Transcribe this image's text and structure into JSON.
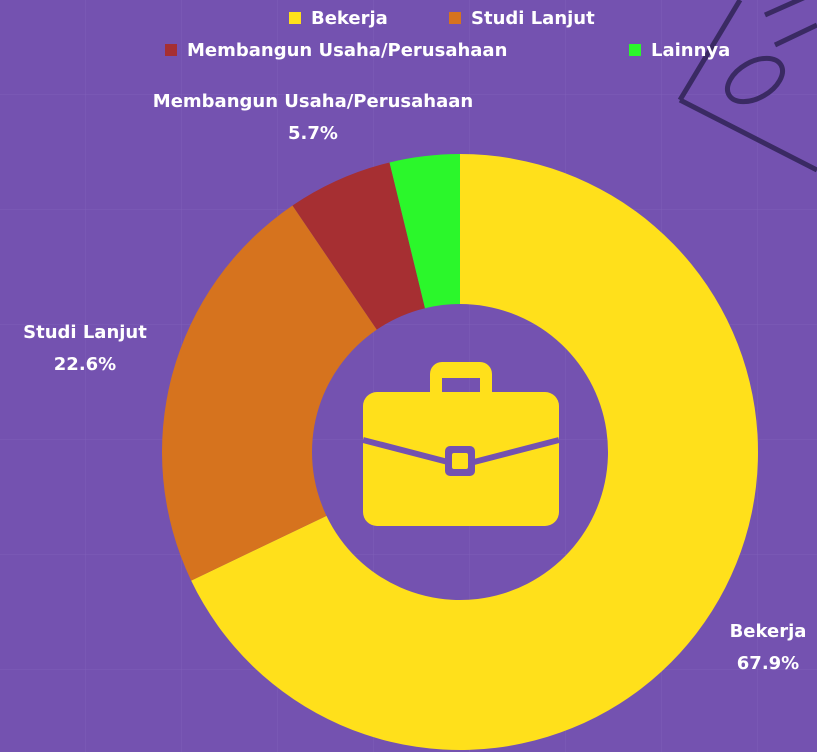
{
  "chart_data": {
    "type": "donut",
    "categories": [
      "Bekerja",
      "Studi Lanjut",
      "Membangun Usaha/Perusahaan",
      "Lainnya"
    ],
    "values": [
      67.9,
      22.6,
      5.7,
      3.8
    ],
    "value_labels": [
      "67.9%",
      "22.6%",
      "5.7%",
      null
    ],
    "colors": [
      "#ffe01b",
      "#d6731e",
      "#a62f32",
      "#2bf72b"
    ],
    "legend": "top"
  }
}
